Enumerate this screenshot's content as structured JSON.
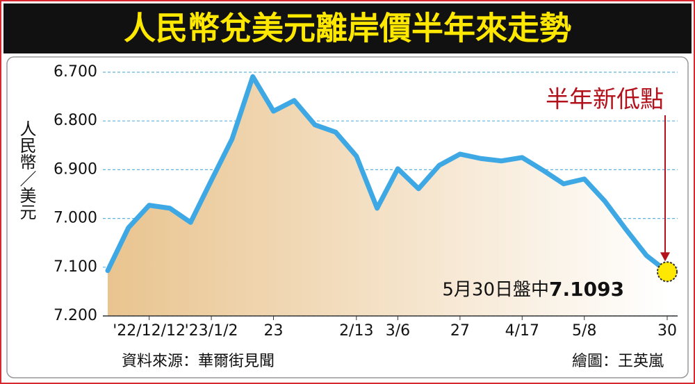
{
  "chart_data": {
    "type": "line",
    "title": "人民幣兌美元離岸價半年來走勢",
    "y_label": "人民幣／美元",
    "annotation": "半年新低點",
    "end_note": "5月30日盤中",
    "source": "資料來源：華爾街見聞",
    "credit": "繪圖：王英嵐",
    "categories": [
      null,
      null,
      "'22/12/12",
      null,
      null,
      "'23/1/2",
      null,
      null,
      "23",
      null,
      null,
      null,
      "2/13",
      null,
      "3/6",
      null,
      null,
      "27",
      null,
      null,
      "4/17",
      null,
      null,
      "5/8",
      null,
      null,
      null,
      "30"
    ],
    "values": [
      7.107,
      7.019,
      6.973,
      6.979,
      7.008,
      6.922,
      6.837,
      6.709,
      6.78,
      6.758,
      6.808,
      6.823,
      6.872,
      6.979,
      6.898,
      6.939,
      6.891,
      6.868,
      6.877,
      6.882,
      6.875,
      6.901,
      6.929,
      6.919,
      6.965,
      7.022,
      7.076,
      7.1093
    ],
    "color": "#3ea8e5",
    "ylim": [
      7.2,
      6.7
    ],
    "yticks": [
      {
        "value": 6.7,
        "label": "6.700"
      },
      {
        "value": 6.8,
        "label": "6.800"
      },
      {
        "value": 6.9,
        "label": "6.900"
      },
      {
        "value": 7.0,
        "label": "7.000"
      },
      {
        "value": 7.1,
        "label": "7.100"
      },
      {
        "value": 7.2,
        "label": "7.200"
      }
    ],
    "grid": true
  }
}
